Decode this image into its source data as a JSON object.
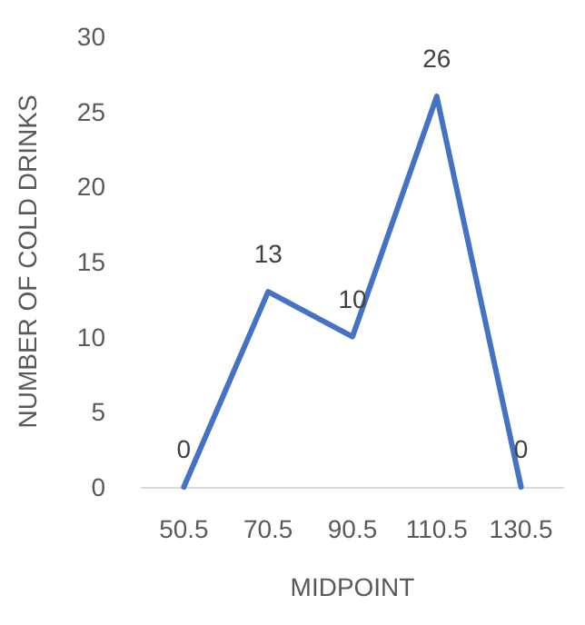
{
  "chart_data": {
    "type": "line",
    "xlabel": "MIDPOINT",
    "ylabel": "NUMBER OF COLD DRINKS",
    "categories": [
      "50.5",
      "70.5",
      "90.5",
      "110.5",
      "130.5"
    ],
    "series": [
      {
        "color": "#4472c4",
        "values": [
          0,
          13,
          10,
          26,
          0
        ]
      }
    ],
    "ylim": [
      0,
      30
    ],
    "yticks": [
      0,
      5,
      10,
      15,
      20,
      25,
      30
    ],
    "data_labels": true,
    "marker": "none",
    "line_style": "solid",
    "grid": false
  }
}
